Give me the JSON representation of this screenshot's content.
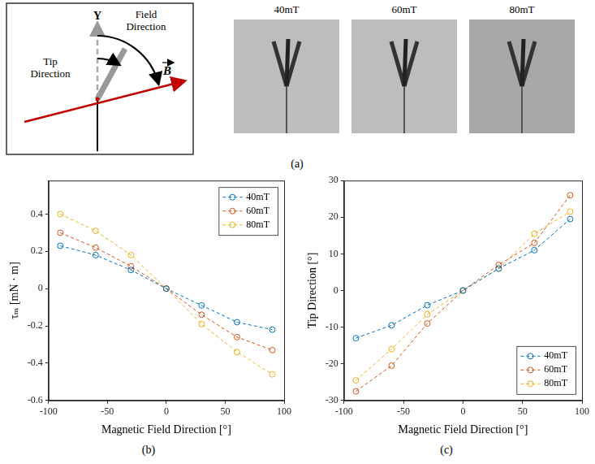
{
  "panel_a": {
    "caption": "(a)",
    "diagram": {
      "axis_label": "Y",
      "field_label": "Field Direction",
      "tip_label": "Tip Direction",
      "vector_label": "B"
    },
    "images": [
      "40mT",
      "60mT",
      "80mT"
    ]
  },
  "chart_data": [
    {
      "type": "line",
      "caption": "(b)",
      "x_label": "Magnetic Field Direction [°]",
      "y_label": "τₘ [mN · m]",
      "x": [
        -90,
        -60,
        -30,
        0,
        30,
        60,
        90
      ],
      "series": [
        {
          "name": "40mT",
          "color": "#0072bd",
          "values": [
            0.23,
            0.18,
            0.1,
            0,
            -0.09,
            -0.18,
            -0.22
          ]
        },
        {
          "name": "60mT",
          "color": "#d95319",
          "values": [
            0.3,
            0.22,
            0.12,
            0,
            -0.14,
            -0.26,
            -0.33
          ]
        },
        {
          "name": "80mT",
          "color": "#edb120",
          "values": [
            0.4,
            0.31,
            0.18,
            0,
            -0.19,
            -0.34,
            -0.46
          ]
        }
      ],
      "xlim": [
        -100,
        100
      ],
      "xticks": [
        -100,
        -50,
        0,
        50,
        100
      ],
      "ylim": [
        -0.6,
        0.58
      ],
      "yticks": [
        -0.6,
        -0.4,
        -0.2,
        0,
        0.2,
        0.4
      ],
      "grid": false,
      "legend": "top-right",
      "marker": "circle",
      "line_style": "dashed"
    },
    {
      "type": "line",
      "caption": "(c)",
      "x_label": "Magnetic Field Direction [°]",
      "y_label": "Tip Direction [°]",
      "x": [
        -90,
        -60,
        -30,
        0,
        30,
        60,
        90
      ],
      "series": [
        {
          "name": "40mT",
          "color": "#0072bd",
          "values": [
            -13,
            -9.5,
            -4,
            0,
            6,
            11,
            19.5
          ]
        },
        {
          "name": "60mT",
          "color": "#d95319",
          "values": [
            -27.5,
            -20.5,
            -9,
            0,
            7,
            13,
            26
          ]
        },
        {
          "name": "80mT",
          "color": "#edb120",
          "values": [
            -24.5,
            -16,
            -6.5,
            0,
            6,
            15.5,
            21.5
          ]
        }
      ],
      "xlim": [
        -100,
        100
      ],
      "xticks": [
        -100,
        -50,
        0,
        50,
        100
      ],
      "ylim": [
        -30,
        30
      ],
      "yticks": [
        -30,
        -20,
        -10,
        0,
        10,
        20,
        30
      ],
      "grid": false,
      "legend": "bottom-right",
      "marker": "circle",
      "line_style": "dashed"
    }
  ]
}
